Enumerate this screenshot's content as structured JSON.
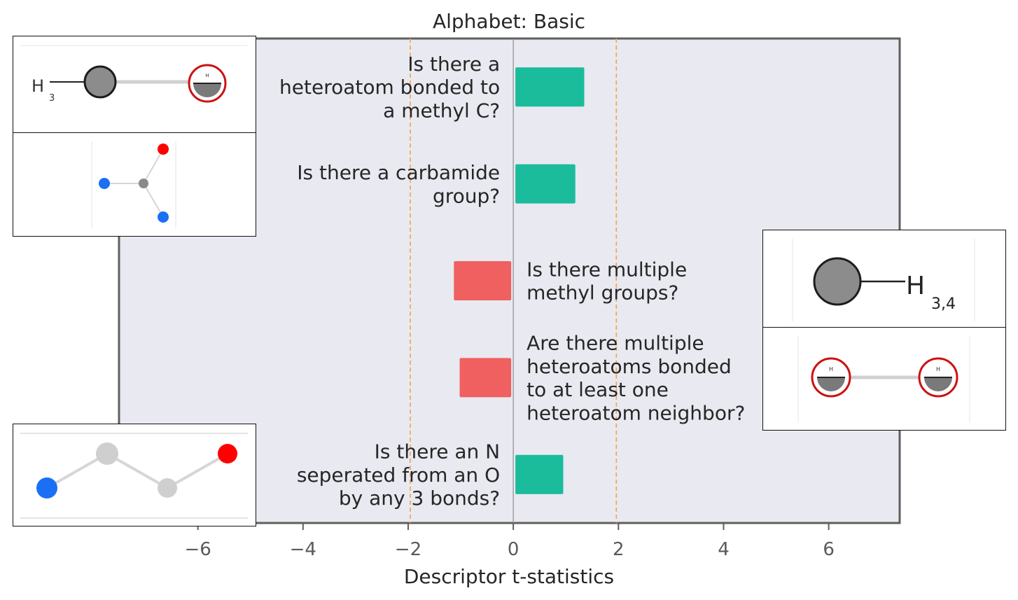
{
  "chart_data": {
    "type": "bar",
    "orientation": "horizontal",
    "title": "Alphabet: Basic",
    "xlabel": "Descriptor t-statistics",
    "ylabel": "",
    "xlim": [
      -7.5,
      7.35
    ],
    "xticks": [
      -6,
      -4,
      -2,
      0,
      2,
      4,
      6
    ],
    "xtick_labels": [
      "−6",
      "−4",
      "−2",
      "0",
      "2",
      "4",
      "6"
    ],
    "significance_lines": [
      -1.96,
      1.96
    ],
    "grid": false,
    "colors": {
      "positive": "#1abc9c",
      "negative": "#f06060",
      "threshold": "#f5a442",
      "background": "#e9e9f1",
      "zero_line": "#8c8c8c"
    },
    "categories": [
      "Is there a heteroatom bonded to a methyl C?",
      "Is there a carbamide group?",
      "Is there multiple methyl groups?",
      "Are there multiple heteroatoms bonded to at least one heteroatom neighbor?",
      "Is there an N seperated from an O by any 3 bonds?"
    ],
    "label_lines": [
      [
        "Is there a",
        "heteroatom bonded to",
        "a methyl C?"
      ],
      [
        "Is there a carbamide",
        "group?"
      ],
      [
        "Is there multiple",
        "methyl groups?"
      ],
      [
        "Are there multiple",
        "heteroatoms bonded",
        "to at least one",
        "heteroatom neighbor?"
      ],
      [
        "Is there an N",
        "seperated from an O",
        "by any 3 bonds?"
      ]
    ],
    "values": [
      1.35,
      1.18,
      -1.13,
      -1.02,
      0.95
    ]
  },
  "insets": {
    "methyl_heteroatom": {
      "text": "H",
      "subscript": "3",
      "atom_marker": "H"
    },
    "carbamide": {},
    "methyl": {
      "text": "H",
      "subscript": "3,4"
    },
    "heteroatom_pair": {
      "atom_marker": "H"
    },
    "n_o_chain": {}
  }
}
